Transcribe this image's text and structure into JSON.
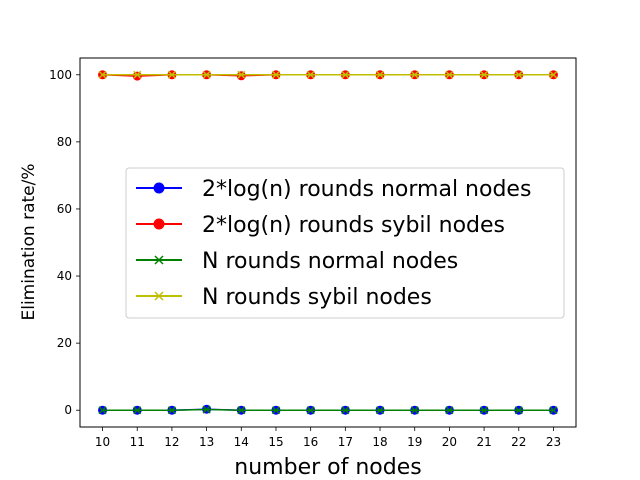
{
  "chart_data": {
    "type": "line",
    "title": "",
    "xlabel": "number of nodes",
    "ylabel": "Elimination rate/%",
    "x": [
      10,
      11,
      12,
      13,
      14,
      15,
      16,
      17,
      18,
      19,
      20,
      21,
      22,
      23
    ],
    "xlim": [
      9.35,
      23.65
    ],
    "ylim": [
      -5,
      105
    ],
    "yticks": [
      0,
      20,
      40,
      60,
      80,
      100
    ],
    "grid": false,
    "legend_position": "center-right",
    "series": [
      {
        "name": "2*log(n) rounds normal nodes",
        "color": "#0000ff",
        "marker": "circle",
        "values": [
          0,
          0,
          0,
          0.3,
          0,
          0,
          0,
          0,
          0,
          0,
          0,
          0,
          0,
          0
        ]
      },
      {
        "name": "2*log(n) rounds sybil nodes",
        "color": "#ff0000",
        "marker": "circle",
        "values": [
          100,
          99.6,
          100,
          100,
          99.7,
          100,
          100,
          100,
          100,
          100,
          100,
          100,
          100,
          100
        ]
      },
      {
        "name": "N rounds normal nodes",
        "color": "#008000",
        "marker": "x",
        "values": [
          0,
          0,
          0,
          0.2,
          0,
          0,
          0,
          0,
          0,
          0,
          0,
          0,
          0,
          0
        ]
      },
      {
        "name": "N rounds sybil nodes",
        "color": "#bfbf00",
        "marker": "x",
        "values": [
          100,
          100,
          100,
          100,
          100,
          100,
          100,
          100,
          100,
          100,
          100,
          100,
          100,
          100
        ]
      }
    ]
  }
}
